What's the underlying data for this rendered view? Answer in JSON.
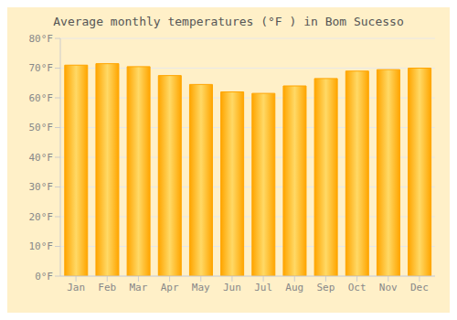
{
  "chart_data": {
    "type": "bar",
    "title": "Average monthly temperatures (°F ) in Bom Sucesso",
    "categories": [
      "Jan",
      "Feb",
      "Mar",
      "Apr",
      "May",
      "Jun",
      "Jul",
      "Aug",
      "Sep",
      "Oct",
      "Nov",
      "Dec"
    ],
    "values": [
      71,
      71.5,
      70.5,
      67.5,
      64.5,
      62,
      61.5,
      64,
      66.5,
      69,
      69.5,
      70
    ],
    "color": "#FFA500",
    "ylim": [
      0,
      80
    ],
    "yticks": [
      {
        "value": 0,
        "label": "0°F"
      },
      {
        "value": 10,
        "label": "10°F"
      },
      {
        "value": 20,
        "label": "20°F"
      },
      {
        "value": 30,
        "label": "30°F"
      },
      {
        "value": 40,
        "label": "40°F"
      },
      {
        "value": 50,
        "label": "50°F"
      },
      {
        "value": 60,
        "label": "60°F"
      },
      {
        "value": 70,
        "label": "70°F"
      },
      {
        "value": 80,
        "label": "80°F"
      }
    ],
    "grid": true
  }
}
